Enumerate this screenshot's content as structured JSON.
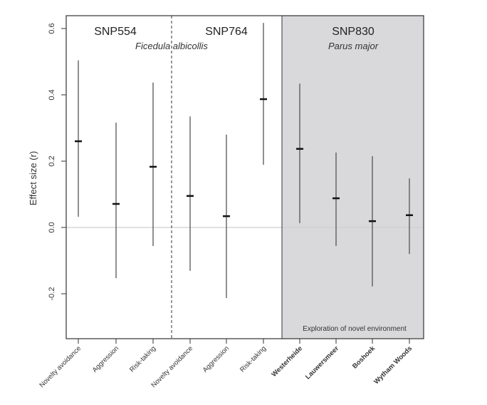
{
  "chart_data": {
    "type": "errorbar",
    "ylabel": "Effect size (r)",
    "ylim": [
      -0.335,
      0.64
    ],
    "yticks": [
      "-0.2",
      "0.0",
      "0.2",
      "0.4",
      "0.6"
    ],
    "yticks_values": [
      -0.2,
      0.0,
      0.2,
      0.4,
      0.6
    ],
    "grid": false,
    "reference_line": 0.0,
    "panels": [
      {
        "title": "SNP554",
        "categories_index": [
          0,
          1,
          2
        ]
      },
      {
        "title": "SNP764",
        "categories_index": [
          3,
          4,
          5
        ]
      },
      {
        "title": "SNP830",
        "subtitle": "Parus major",
        "note": "Exploration of novel environment",
        "categories_index": [
          6,
          7,
          8,
          9
        ],
        "background": "#d9d9db"
      }
    ],
    "shared_subtitle": "Ficedula albicollis",
    "categories": [
      "Novelty avoidance",
      "Aggression",
      "Risk-taking",
      "Novelty avoidance",
      "Aggression",
      "Risk-taking",
      "Westerheide",
      "Lauwersmeer",
      "Boshoek",
      "Wytham Woods"
    ],
    "bold_categories": [
      false,
      false,
      false,
      false,
      false,
      false,
      true,
      true,
      true,
      true
    ],
    "estimate": [
      0.26,
      0.071,
      0.183,
      0.095,
      0.034,
      0.387,
      0.237,
      0.088,
      0.019,
      0.037
    ],
    "lower": [
      0.032,
      -0.153,
      -0.056,
      -0.131,
      -0.213,
      0.189,
      0.013,
      -0.056,
      -0.178,
      -0.08
    ],
    "upper": [
      0.504,
      0.316,
      0.437,
      0.335,
      0.28,
      0.617,
      0.434,
      0.226,
      0.215,
      0.148
    ]
  }
}
